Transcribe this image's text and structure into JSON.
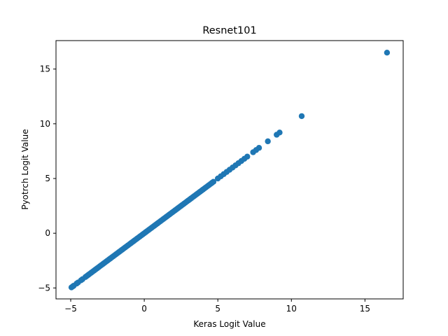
{
  "chart_data": {
    "type": "scatter",
    "title": "Resnet101",
    "xlabel": "Keras Logit Value",
    "ylabel": "Pyotrch Logit Value",
    "xlim": [
      -6,
      17.6
    ],
    "ylim": [
      -6,
      17.6
    ],
    "xticks": [
      -5,
      0,
      5,
      10,
      15
    ],
    "yticks": [
      -5,
      0,
      5,
      10,
      15
    ],
    "xtick_labels": [
      "−5",
      "0",
      "5",
      "10",
      "15"
    ],
    "ytick_labels": [
      "−5",
      "0",
      "5",
      "10",
      "15"
    ],
    "grid": false,
    "marker_color": "#1f77b4",
    "series": [
      {
        "x": [
          -4.95,
          -4.85,
          -4.8,
          -4.6,
          -4.5,
          -4.3,
          -4.2,
          -4.0,
          -3.9,
          -3.8,
          -3.7,
          -3.6,
          -3.5,
          -3.4,
          -3.3,
          -3.2,
          -3.1,
          -3.0,
          -2.9,
          -2.8,
          -2.7,
          -2.6,
          -2.5,
          -2.4,
          -2.3,
          -2.2,
          -2.1,
          -2.0,
          -1.9,
          -1.8,
          -1.7,
          -1.6,
          -1.5,
          -1.4,
          -1.3,
          -1.2,
          -1.1,
          -1.0,
          -0.9,
          -0.8,
          -0.7,
          -0.6,
          -0.5,
          -0.4,
          -0.3,
          -0.2,
          -0.1,
          0.0,
          0.1,
          0.2,
          0.3,
          0.4,
          0.5,
          0.6,
          0.7,
          0.8,
          0.9,
          1.0,
          1.1,
          1.2,
          1.3,
          1.4,
          1.5,
          1.6,
          1.7,
          1.8,
          1.9,
          2.0,
          2.1,
          2.2,
          2.3,
          2.4,
          2.5,
          2.6,
          2.7,
          2.8,
          2.9,
          3.0,
          3.1,
          3.2,
          3.3,
          3.4,
          3.5,
          3.6,
          3.7,
          3.8,
          3.9,
          4.0,
          4.1,
          4.2,
          4.3,
          4.4,
          4.5,
          4.6,
          4.7,
          5.0,
          5.2,
          5.4,
          5.6,
          5.8,
          6.0,
          6.2,
          6.4,
          6.6,
          6.8,
          7.0,
          7.4,
          7.6,
          7.8,
          8.4,
          9.0,
          9.2,
          10.7,
          16.5
        ],
        "y": [
          -4.95,
          -4.85,
          -4.8,
          -4.6,
          -4.5,
          -4.3,
          -4.2,
          -4.0,
          -3.9,
          -3.8,
          -3.7,
          -3.6,
          -3.5,
          -3.4,
          -3.3,
          -3.2,
          -3.1,
          -3.0,
          -2.9,
          -2.8,
          -2.7,
          -2.6,
          -2.5,
          -2.4,
          -2.3,
          -2.2,
          -2.1,
          -2.0,
          -1.9,
          -1.8,
          -1.7,
          -1.6,
          -1.5,
          -1.4,
          -1.3,
          -1.2,
          -1.1,
          -1.0,
          -0.9,
          -0.8,
          -0.7,
          -0.6,
          -0.5,
          -0.4,
          -0.3,
          -0.2,
          -0.1,
          0.0,
          0.1,
          0.2,
          0.3,
          0.4,
          0.5,
          0.6,
          0.7,
          0.8,
          0.9,
          1.0,
          1.1,
          1.2,
          1.3,
          1.4,
          1.5,
          1.6,
          1.7,
          1.8,
          1.9,
          2.0,
          2.1,
          2.2,
          2.3,
          2.4,
          2.5,
          2.6,
          2.7,
          2.8,
          2.9,
          3.0,
          3.1,
          3.2,
          3.3,
          3.4,
          3.5,
          3.6,
          3.7,
          3.8,
          3.9,
          4.0,
          4.1,
          4.2,
          4.3,
          4.4,
          4.5,
          4.6,
          4.7,
          5.0,
          5.2,
          5.4,
          5.6,
          5.8,
          6.0,
          6.2,
          6.4,
          6.6,
          6.8,
          7.0,
          7.4,
          7.6,
          7.8,
          8.4,
          9.0,
          9.2,
          10.7,
          16.5
        ]
      }
    ]
  }
}
